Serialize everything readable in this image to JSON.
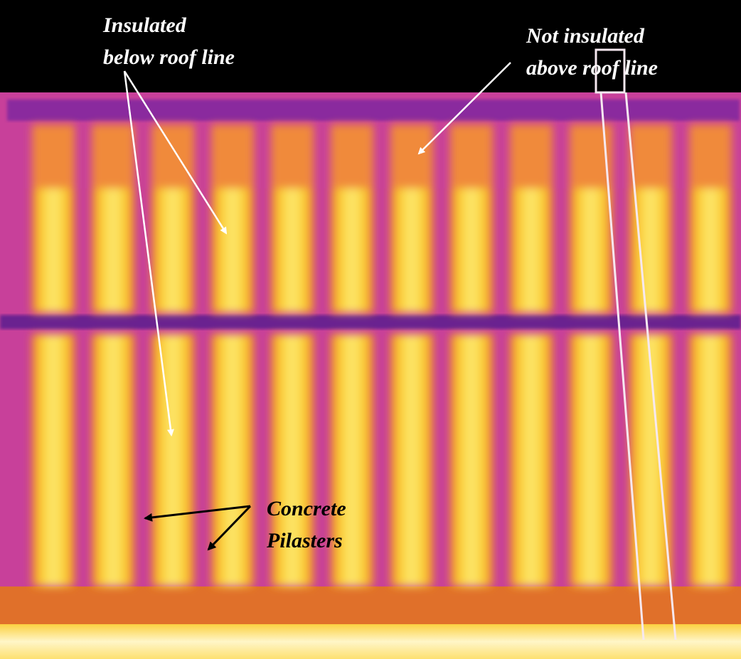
{
  "annotations": {
    "insulated": {
      "lines": [
        "Insulated",
        "below roof line"
      ]
    },
    "not_insulated": {
      "lines": [
        "Not insulated",
        "above roof line"
      ]
    },
    "pilasters": {
      "lines": [
        "Concrete",
        "Pilasters"
      ]
    }
  }
}
